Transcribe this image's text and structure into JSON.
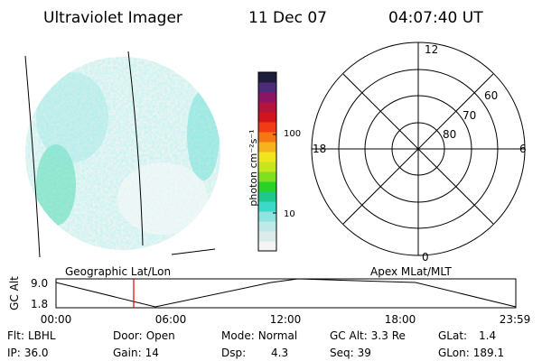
{
  "header": {
    "instrument": "Ultraviolet Imager",
    "date": "11 Dec 07",
    "time": "04:07:40 UT"
  },
  "colorbar": {
    "unit_label": "photon cm⁻²s⁻¹",
    "ticks": [
      "100",
      "10"
    ],
    "colors": [
      "#f4f4f4",
      "#dcecec",
      "#bfe8e8",
      "#8fe4e0",
      "#3cd8c8",
      "#1ec88c",
      "#28d228",
      "#7ee01e",
      "#c8e61e",
      "#f0e61e",
      "#f5b41e",
      "#f57814",
      "#f03c14",
      "#d2141e",
      "#b4143c",
      "#8c1464",
      "#4c2c78",
      "#1e1e3c"
    ]
  },
  "polar_plot": {
    "mlt_labels": {
      "top": "12",
      "left": "18",
      "right": "6",
      "bottom": "0"
    },
    "lat_labels": [
      "60",
      "70",
      "80"
    ]
  },
  "map_labels": {
    "left": "Geographic Lat/Lon",
    "right": "Apex MLat/MLT"
  },
  "altitude_plot": {
    "ylabel": "GC Alt",
    "yticks": [
      "9.0",
      "1.8"
    ],
    "xticks": [
      "00:00",
      "06:00",
      "12:00",
      "18:00",
      "23:59"
    ],
    "marker_time": "04:07"
  },
  "info": {
    "flt_label": "Flt:",
    "flt": "LBHL",
    "door_label": "Door:",
    "door": "Open",
    "mode_label": "Mode:",
    "mode": "Normal",
    "gcalt_label": "GC Alt:",
    "gcalt": "3.3 Re",
    "glat_label": "GLat:",
    "glat": "1.4",
    "ip_label": "IP:",
    "ip": "36.0",
    "gain_label": "Gain:",
    "gain": "14",
    "dsp_label": "Dsp:",
    "dsp": "4.3",
    "seq_label": "Seq:",
    "seq": "39",
    "glon_label": "GLon:",
    "glon": "189.1"
  }
}
